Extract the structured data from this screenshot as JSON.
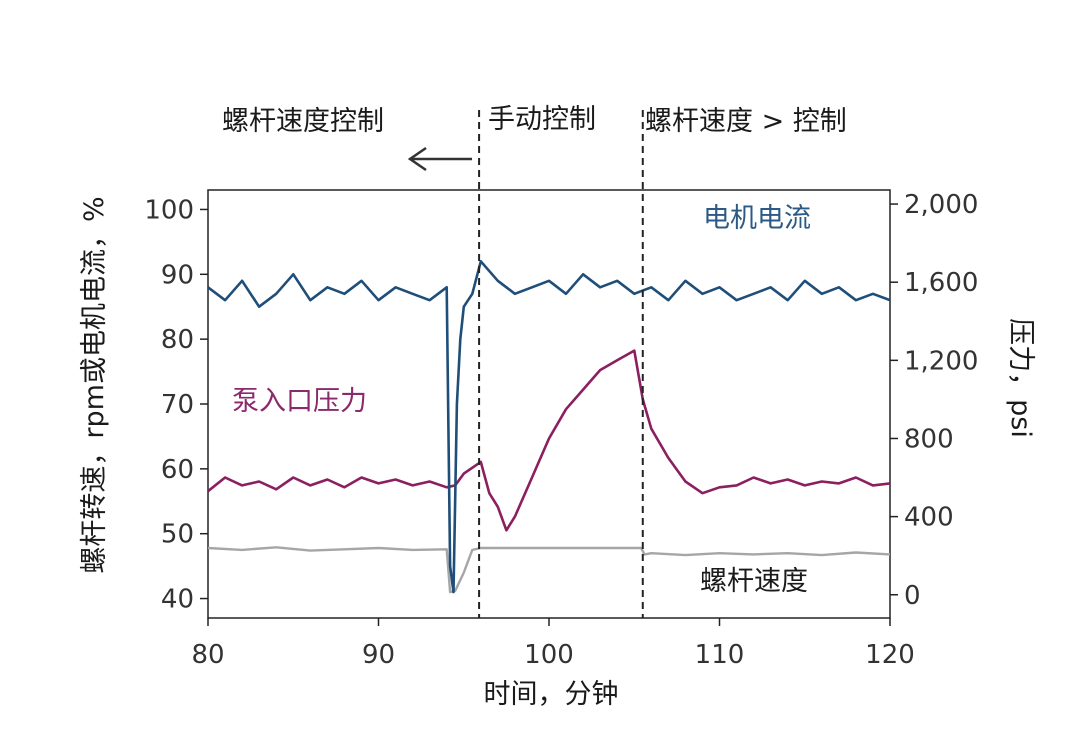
{
  "chart_data": {
    "type": "line",
    "xlabel": "时间，分钟",
    "ylabel_left": "螺杆转速，rpm或电机电流，%",
    "ylabel_right": "压力，psi",
    "xlim": [
      80,
      120
    ],
    "ylim_left": [
      37,
      103
    ],
    "ylim_right": [
      -119,
      2072
    ],
    "x_ticks": [
      80,
      90,
      100,
      110,
      120
    ],
    "y_left_ticks": [
      40,
      50,
      60,
      70,
      80,
      90,
      100
    ],
    "y_right_ticks": [
      0,
      400,
      800,
      1200,
      1600,
      2000
    ],
    "y_right_tick_labels": [
      "0",
      "400",
      "800",
      "1,200",
      "1,600",
      "2,000"
    ],
    "grid": false,
    "regions": [
      {
        "label": "螺杆速度控制",
        "arrow": "left"
      },
      {
        "label": "手动控制"
      },
      {
        "label": "螺杆速度 > 控制"
      }
    ],
    "vlines": [
      95.9,
      105.5
    ],
    "colors": {
      "motor_current": "#1f4e79",
      "suction_pressure": "#8b1f5f",
      "screw_speed": "#a6a6a6"
    },
    "series": [
      {
        "name": "电机电流",
        "axis": "left",
        "x": [
          80,
          81,
          82,
          83,
          84,
          85,
          86,
          87,
          88,
          89,
          90,
          91,
          92,
          93,
          94,
          94.2,
          94.4,
          94.6,
          94.8,
          95,
          95.5,
          96,
          97,
          98,
          99,
          100,
          101,
          102,
          103,
          104,
          105,
          106,
          107,
          108,
          109,
          110,
          111,
          112,
          113,
          114,
          115,
          116,
          117,
          118,
          119,
          120
        ],
        "values": [
          88,
          86,
          89,
          85,
          87,
          90,
          86,
          88,
          87,
          89,
          86,
          88,
          87,
          86,
          88,
          45,
          41,
          70,
          80,
          85,
          87,
          92,
          89,
          87,
          88,
          89,
          87,
          90,
          88,
          89,
          87,
          88,
          86,
          89,
          87,
          88,
          86,
          87,
          88,
          86,
          89,
          87,
          88,
          86,
          87,
          86
        ]
      },
      {
        "name": "泵入口压力",
        "axis": "right",
        "x": [
          80,
          81,
          82,
          83,
          84,
          85,
          86,
          87,
          88,
          89,
          90,
          91,
          92,
          93,
          94,
          94.5,
          95,
          96,
          96.5,
          97,
          97.5,
          98,
          99,
          100,
          101,
          102,
          103,
          104,
          105,
          105.5,
          106,
          107,
          108,
          109,
          110,
          111,
          112,
          113,
          114,
          115,
          116,
          117,
          118,
          119,
          120
        ],
        "values": [
          530,
          600,
          560,
          580,
          540,
          600,
          560,
          590,
          550,
          600,
          570,
          590,
          560,
          580,
          550,
          560,
          620,
          680,
          520,
          450,
          330,
          400,
          600,
          800,
          950,
          1050,
          1150,
          1200,
          1250,
          1000,
          850,
          700,
          580,
          520,
          550,
          560,
          600,
          570,
          590,
          560,
          580,
          570,
          600,
          560,
          570
        ]
      },
      {
        "name": "螺杆速度",
        "axis": "left",
        "x": [
          80,
          82,
          84,
          86,
          88,
          90,
          92,
          94,
          94.2,
          94.5,
          95,
          95.5,
          96,
          97,
          98,
          100,
          102,
          104,
          105.4,
          105.6,
          106,
          108,
          110,
          112,
          114,
          116,
          118,
          120
        ],
        "values": [
          47.8,
          47.5,
          47.9,
          47.4,
          47.6,
          47.8,
          47.5,
          47.6,
          41,
          41.2,
          44,
          47.5,
          47.8,
          47.8,
          47.8,
          47.8,
          47.8,
          47.8,
          47.8,
          46.8,
          47.0,
          46.7,
          47.0,
          46.8,
          47.0,
          46.7,
          47.1,
          46.8
        ]
      }
    ]
  }
}
